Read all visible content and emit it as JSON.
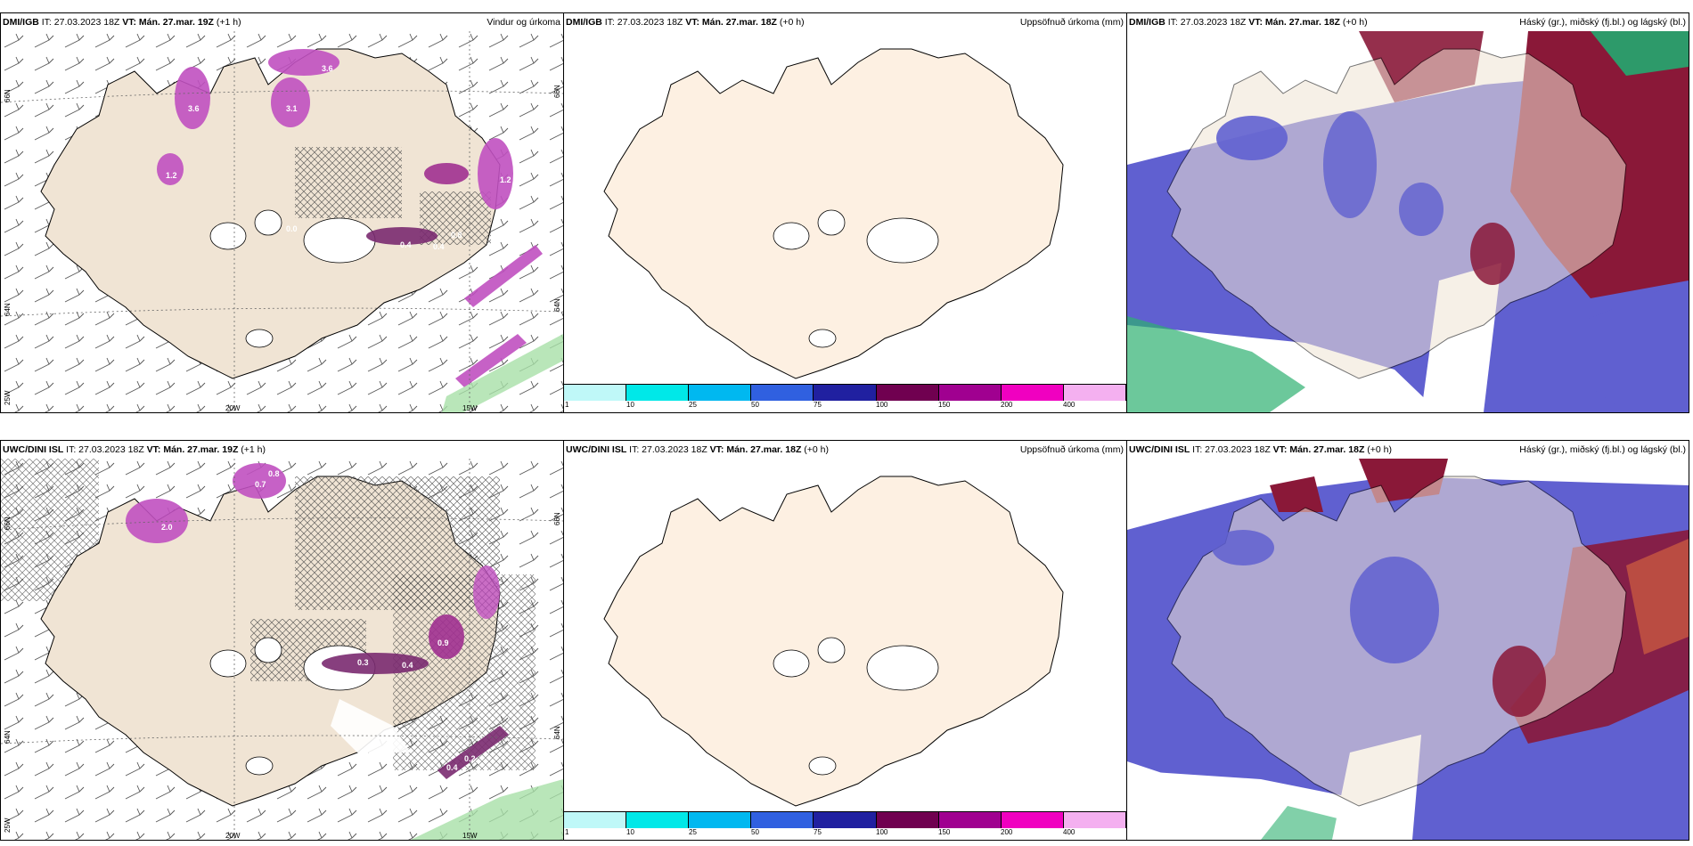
{
  "colors": {
    "land": "#f0e4d4",
    "land_plain": "#fdf0e2",
    "snow_mid": "#6060d0",
    "cloud_high": "#8a1838",
    "precip_pink": "#c050c0",
    "precip_green": "#a8e0a8",
    "colorbar": [
      "#bff8f8",
      "#00e8e8",
      "#00b8f0",
      "#3060e0",
      "#2020a0",
      "#700050",
      "#a00090",
      "#f000c0",
      "#f4b0f0"
    ]
  },
  "rows": [
    {
      "panels": [
        {
          "type": "wind",
          "model": "DMI/IGB",
          "it_label": " IT: 27.03.2023 18Z ",
          "vt_label": "VT: Mán. 27.mar. 19Z",
          "lead": " (+1 h)",
          "right_title": "Vindur og úrkoma",
          "lon_labels": [
            "20W",
            "15W"
          ],
          "lat_labels": [
            "66N",
            "64N",
            "66N",
            "64N",
            "25W"
          ],
          "values": [
            "3.6",
            "3.6",
            "3.1",
            "0.4",
            "1.2",
            "1.2",
            "0.0",
            "0.4",
            "0.8"
          ]
        },
        {
          "type": "accum",
          "model": "DMI/IGB",
          "it_label": " IT: 27.03.2023 18Z ",
          "vt_label": "VT: Mán. 27.mar. 18Z",
          "lead": " (+0 h)",
          "right_title": "Uppsöfnuð úrkoma (mm)",
          "colorbar_labels": [
            "1",
            "10",
            "25",
            "50",
            "75",
            "100",
            "150",
            "200",
            "400"
          ]
        },
        {
          "type": "cloud",
          "model": "DMI/IGB",
          "it_label": " IT: 27.03.2023 18Z ",
          "vt_label": "VT: Mán. 27.mar. 18Z",
          "lead": " (+0 h)",
          "right_title": "Háský (gr.), miðský (fj.bl.) og lágský (bl.)"
        }
      ]
    },
    {
      "panels": [
        {
          "type": "wind",
          "model": "UWC/DINI ISL",
          "it_label": " IT: 27.03.2023 18Z ",
          "vt_label": "VT: Mán. 27.mar. 19Z",
          "lead": " (+1 h)",
          "right_title": "",
          "lon_labels": [
            "20W",
            "15W"
          ],
          "lat_labels": [
            "66N",
            "64N",
            "66N",
            "64N",
            "25W"
          ],
          "values": [
            "0.8",
            "0.7",
            "2.0",
            "0.4",
            "0.3",
            "0.9",
            "0.4",
            "0.2"
          ]
        },
        {
          "type": "accum",
          "model": "UWC/DINI ISL",
          "it_label": " IT: 27.03.2023 18Z ",
          "vt_label": "VT: Mán. 27.mar. 18Z",
          "lead": " (+0 h)",
          "right_title": "Uppsöfnuð úrkoma (mm)",
          "colorbar_labels": [
            "1",
            "10",
            "25",
            "50",
            "75",
            "100",
            "150",
            "200",
            "400"
          ]
        },
        {
          "type": "cloud",
          "model": "UWC/DINI ISL",
          "it_label": " IT: 27.03.2023 18Z ",
          "vt_label": "VT: Mán. 27.mar. 18Z",
          "lead": " (+0 h)",
          "right_title": "Háský (gr.), miðský (fj.bl.) og lágský (bl.)"
        }
      ]
    }
  ]
}
